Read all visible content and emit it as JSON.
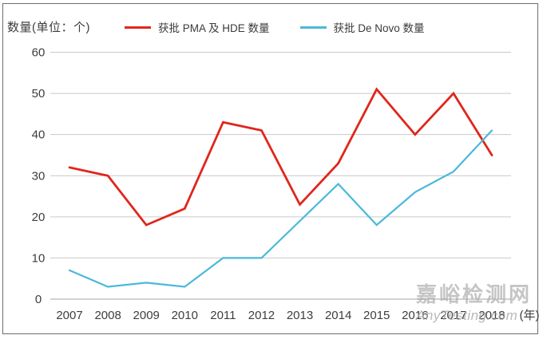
{
  "chart_data": {
    "type": "line",
    "title": "",
    "ylabel": "数量(单位：个)",
    "xlabel_suffix": "(年)",
    "categories": [
      "2007",
      "2008",
      "2009",
      "2010",
      "2011",
      "2012",
      "2013",
      "2014",
      "2015",
      "2016",
      "2017",
      "2018"
    ],
    "series": [
      {
        "name": "获批 PMA 及 HDE 数量",
        "color": "#e0261c",
        "values": [
          32,
          30,
          18,
          22,
          43,
          41,
          23,
          33,
          51,
          40,
          50,
          35
        ]
      },
      {
        "name": "获批 De Novo 数量",
        "color": "#4ab9d9",
        "values": [
          7,
          3,
          4,
          3,
          10,
          10,
          19,
          28,
          18,
          26,
          31,
          41
        ]
      }
    ],
    "ylim": [
      0,
      60
    ],
    "ytick_step": 10,
    "yticks": [
      "0",
      "10",
      "20",
      "30",
      "40",
      "50",
      "60"
    ],
    "grid": true,
    "legend_position": "top"
  },
  "colors": {
    "grid": "#c9c9c9",
    "zero_axis": "#a3a3a3",
    "text": "#3d3d3d",
    "border": "#6d6d6d"
  },
  "watermark": {
    "line1": "嘉峪检测网",
    "line2": "AnyTesting.com"
  }
}
